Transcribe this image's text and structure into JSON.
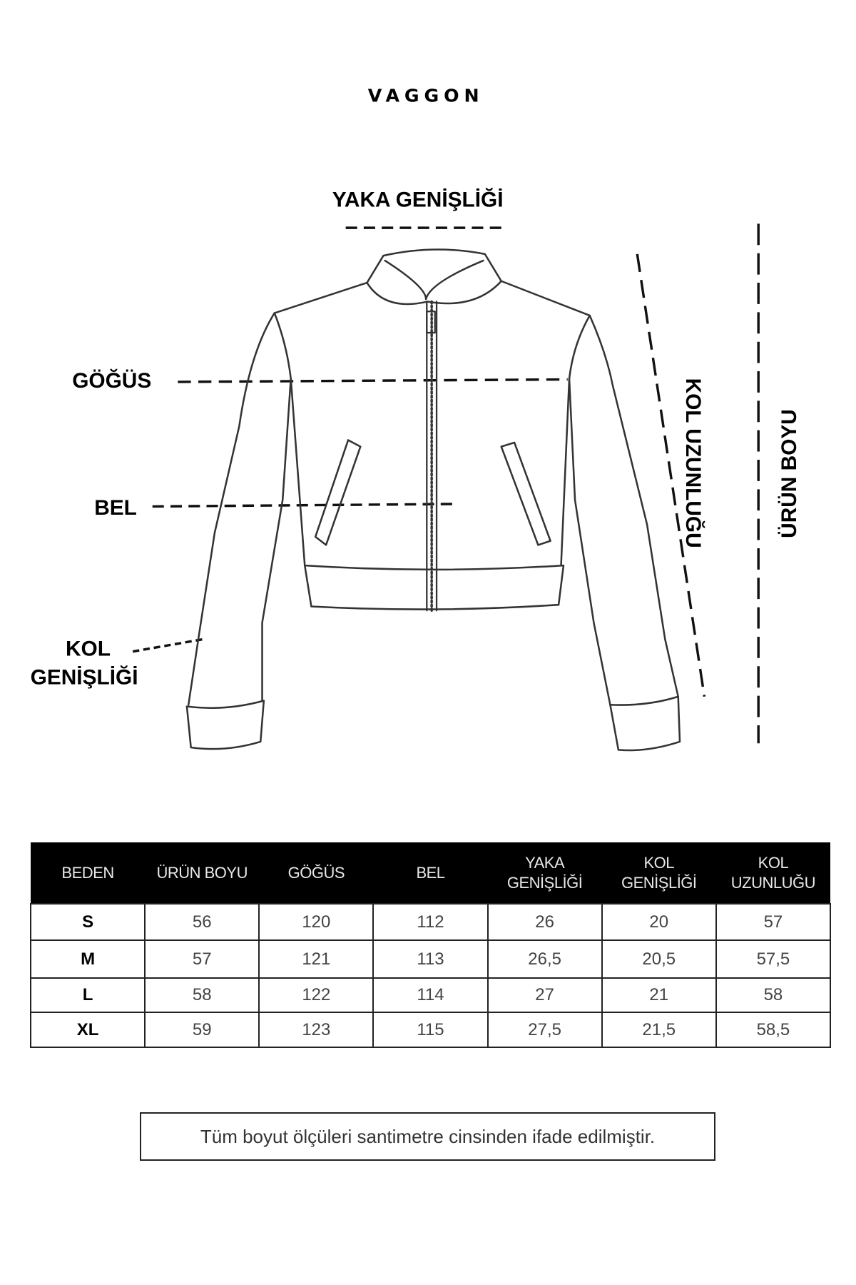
{
  "brand": "VAGGON",
  "labels": {
    "yaka_genisligi": "YAKA GENİŞLİĞİ",
    "gogus": "GÖĞÜS",
    "bel": "BEL",
    "kol_genisligi_1": "KOL",
    "kol_genisligi_2": "GENİŞLİĞİ",
    "kol_uzunlugu": "KOL UZUNLUĞU",
    "urun_boyu": "ÜRÜN BOYU"
  },
  "table": {
    "headers": [
      [
        "BEDEN"
      ],
      [
        "ÜRÜN BOYU"
      ],
      [
        "GÖĞÜS"
      ],
      [
        "BEL"
      ],
      [
        "YAKA",
        "GENİŞLİĞİ"
      ],
      [
        "KOL",
        "GENİŞLİĞİ"
      ],
      [
        "KOL",
        "UZUNLUĞU"
      ]
    ],
    "rows": [
      [
        "S",
        "56",
        "120",
        "112",
        "26",
        "20",
        "57"
      ],
      [
        "M",
        "57",
        "121",
        "113",
        "26,5",
        "20,5",
        "57,5"
      ],
      [
        "L",
        "58",
        "122",
        "114",
        "27",
        "21",
        "58"
      ],
      [
        "XL",
        "59",
        "123",
        "115",
        "27,5",
        "21,5",
        "58,5"
      ]
    ]
  },
  "note": "Tüm boyut ölçüleri santimetre cinsinden ifade edilmiştir."
}
